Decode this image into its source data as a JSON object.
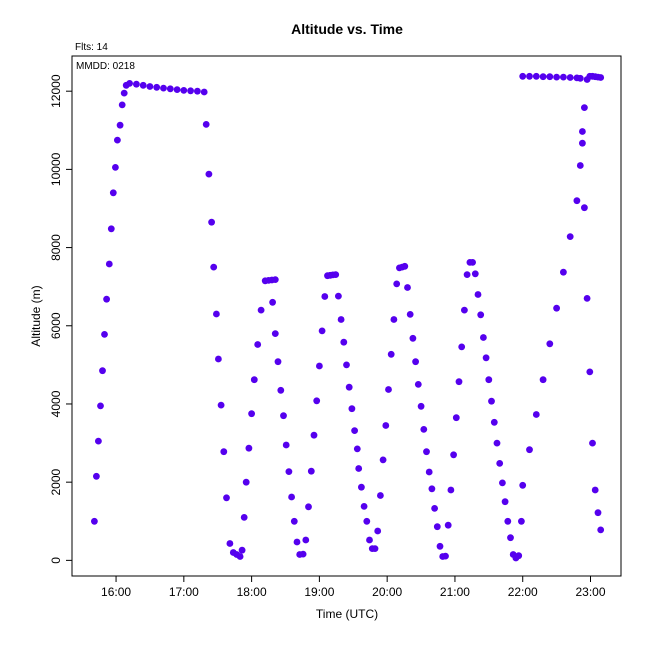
{
  "chart_data": {
    "type": "scatter",
    "title": "Altitude  vs. Time",
    "xlabel": "Time (UTC)",
    "ylabel": "Altitude (m)",
    "fits_label": "Flts: 14",
    "mmdd_label": "MMDD: 0218",
    "xlim_hours": [
      15.35,
      23.45
    ],
    "ylim": [
      -400,
      12900
    ],
    "x_ticks": [
      {
        "value": 16,
        "label": "16:00"
      },
      {
        "value": 17,
        "label": "17:00"
      },
      {
        "value": 18,
        "label": "18:00"
      },
      {
        "value": 19,
        "label": "19:00"
      },
      {
        "value": 20,
        "label": "20:00"
      },
      {
        "value": 21,
        "label": "21:00"
      },
      {
        "value": 22,
        "label": "22:00"
      },
      {
        "value": 23,
        "label": "23:00"
      }
    ],
    "y_ticks": [
      {
        "value": 0,
        "label": "0"
      },
      {
        "value": 2000,
        "label": "2000"
      },
      {
        "value": 4000,
        "label": "4000"
      },
      {
        "value": 6000,
        "label": "6000"
      },
      {
        "value": 8000,
        "label": "8000"
      },
      {
        "value": 10000,
        "label": "10000"
      },
      {
        "value": 12000,
        "label": "12000"
      }
    ],
    "marker_color": "#5500ee",
    "grid": false,
    "series": [
      {
        "x_hours": [
          15.68,
          15.71,
          15.74,
          15.77,
          15.8,
          15.83,
          15.86,
          15.9,
          15.93,
          15.96,
          15.99,
          16.02,
          16.06,
          16.09,
          16.12,
          16.15,
          16.2,
          16.3,
          16.4,
          16.5,
          16.6,
          16.7,
          16.8,
          16.9,
          17.0,
          17.1,
          17.2,
          17.3,
          17.33,
          17.37,
          17.41,
          17.44,
          17.48,
          17.51,
          17.55,
          17.59,
          17.63,
          17.68,
          17.73,
          17.78,
          17.83,
          17.86,
          17.89,
          17.92,
          17.96,
          18.0,
          18.04,
          18.09,
          18.14,
          18.2,
          18.25,
          18.3,
          18.35
        ],
        "y": [
          1000,
          2150,
          3050,
          3950,
          4850,
          5780,
          6680,
          7580,
          8480,
          9400,
          10050,
          10750,
          11130,
          11650,
          11950,
          12150,
          12200,
          12180,
          12150,
          12120,
          12100,
          12080,
          12060,
          12040,
          12020,
          12010,
          12000,
          11980,
          11150,
          9880,
          8650,
          7500,
          6300,
          5150,
          3970,
          2780,
          1600,
          430,
          200,
          150,
          100,
          260,
          1100,
          2000,
          2870,
          3750,
          4620,
          5520,
          6400,
          7150,
          7160,
          7170,
          7180
        ]
      },
      {
        "x_hours": [
          18.31,
          18.35,
          18.39,
          18.43,
          18.47,
          18.51,
          18.55,
          18.59,
          18.63,
          18.67,
          18.71,
          18.76,
          18.8,
          18.84,
          18.88,
          18.92,
          18.96,
          19.0,
          19.04,
          19.08,
          19.12,
          19.16,
          19.2,
          19.24,
          19.28,
          19.32,
          19.36,
          19.4,
          19.44,
          19.48,
          19.52,
          19.56,
          19.58,
          19.62,
          19.66,
          19.7,
          19.74,
          19.78,
          19.82,
          19.86,
          19.9,
          19.94,
          19.98,
          20.02,
          20.06,
          20.1,
          20.14,
          20.18,
          20.22,
          20.26,
          20.3,
          20.34,
          20.38,
          20.42,
          20.46,
          20.5,
          20.54
        ],
        "y": [
          6600,
          5800,
          5080,
          4350,
          3700,
          2950,
          2270,
          1620,
          1000,
          470,
          150,
          160,
          520,
          1370,
          2280,
          3200,
          4080,
          4970,
          5870,
          6750,
          7280,
          7290,
          7300,
          7310,
          6760,
          6160,
          5580,
          5000,
          4430,
          3880,
          3320,
          2850,
          2350,
          1870,
          1380,
          1000,
          520,
          300,
          300,
          750,
          1660,
          2570,
          3450,
          4370,
          5270,
          6160,
          7070,
          7480,
          7500,
          7520,
          6980,
          6290,
          5680,
          5080,
          4500,
          3940,
          3350
        ]
      },
      {
        "x_hours": [
          20.58,
          20.62,
          20.66,
          20.7,
          20.74,
          20.78,
          20.82,
          20.86,
          20.9,
          20.94,
          20.98,
          21.02,
          21.06,
          21.1,
          21.14,
          21.18,
          21.22,
          21.26,
          21.3,
          21.34,
          21.38,
          21.42,
          21.46,
          21.5,
          21.54,
          21.58,
          21.62,
          21.66,
          21.7,
          21.74,
          21.78,
          21.82,
          21.86,
          21.9,
          21.94,
          21.98,
          22.0,
          22.1,
          22.2,
          22.3,
          22.4,
          22.5,
          22.6,
          22.7,
          22.8,
          22.85,
          22.88,
          22.91,
          22.95,
          22.99,
          23.03,
          23.07,
          23.11,
          23.15
        ],
        "y": [
          2780,
          2260,
          1830,
          1330,
          860,
          360,
          100,
          110,
          900,
          1800,
          2700,
          3650,
          4570,
          5460,
          6400,
          7310,
          7620,
          7620,
          7330,
          6800,
          6280,
          5700,
          5180,
          4620,
          4070,
          3530,
          3000,
          2480,
          1980,
          1500,
          1000,
          580,
          150,
          60,
          120,
          1000,
          1920,
          2830,
          3730,
          4620,
          5540,
          6450,
          7370,
          8280,
          9200,
          10100,
          10670,
          11580,
          12300,
          12380,
          12380,
          12370,
          12360,
          12350
        ]
      },
      {
        "x_hours": [
          22.0,
          22.1,
          22.2,
          22.3,
          22.4,
          22.5,
          22.6,
          22.7,
          22.8,
          22.85,
          22.88,
          22.91,
          22.95,
          22.99,
          23.03,
          23.07,
          23.11,
          23.15
        ],
        "y": [
          12380,
          12380,
          12380,
          12370,
          12370,
          12360,
          12360,
          12350,
          12340,
          12330,
          10970,
          9020,
          6700,
          4820,
          3000,
          1800,
          1220,
          780
        ]
      }
    ]
  }
}
